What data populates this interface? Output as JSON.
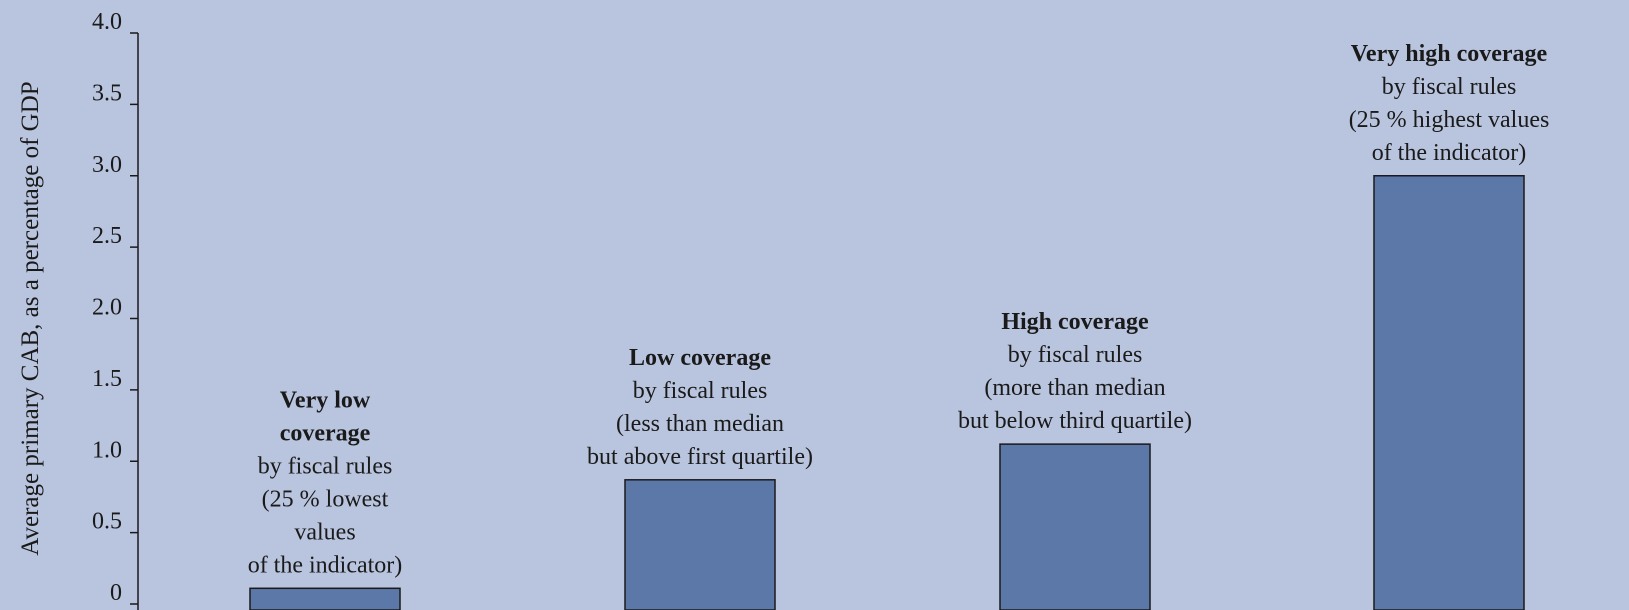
{
  "colors": {
    "background": "#b9c4de",
    "bar_fill": "#5b78a8",
    "bar_stroke": "#1a1a1a",
    "axis": "#1a1a1a"
  },
  "chart_data": {
    "type": "bar",
    "title": "",
    "xlabel": "",
    "ylabel": "Average primary CAB, as a percentage of GDP",
    "ylim": [
      0,
      4.0
    ],
    "yticks": [
      0,
      0.5,
      1.0,
      1.5,
      2.0,
      2.5,
      3.0,
      3.5,
      4.0
    ],
    "ytick_labels": [
      "0",
      "0.5",
      "1.0",
      "1.5",
      "2.0",
      "2.5",
      "3.0",
      "3.5",
      "4.0"
    ],
    "grid": false,
    "legend": "none",
    "categories": [
      "Very low coverage",
      "Low coverage",
      "High coverage",
      "Very high coverage"
    ],
    "values": [
      0.11,
      0.87,
      1.12,
      3.0
    ],
    "annotations": [
      {
        "bold_lines": [
          "Very low",
          "coverage"
        ],
        "lines": [
          "by fiscal rules",
          "(25 % lowest",
          "values",
          "of the indicator)"
        ]
      },
      {
        "bold_lines": [
          "Low coverage"
        ],
        "lines": [
          "by fiscal rules",
          "(less than median",
          "but above first quartile)"
        ]
      },
      {
        "bold_lines": [
          "High coverage"
        ],
        "lines": [
          "by fiscal rules",
          "(more than median",
          "but below third quartile)"
        ]
      },
      {
        "bold_lines": [
          "Very high coverage"
        ],
        "lines": [
          "by fiscal rules",
          "(25 % highest values",
          "of the indicator)"
        ]
      }
    ]
  }
}
